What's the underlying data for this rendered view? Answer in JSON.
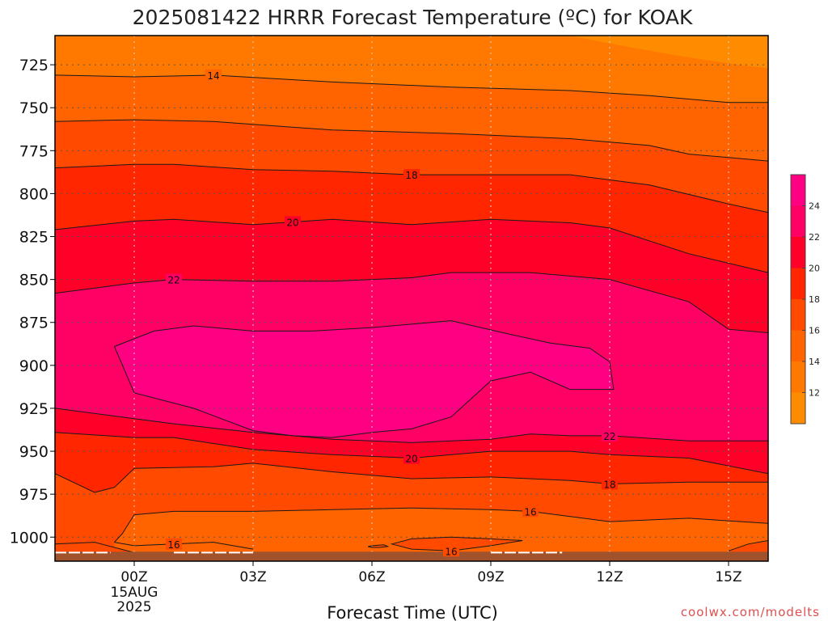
{
  "chart_data": {
    "type": "heatmap",
    "title": "2025081422 HRRR Forecast Temperature (ºC) for KOAK",
    "xlabel": "Forecast Time (UTC)",
    "ylabel": "",
    "credit": "coolwx.com/modelts",
    "x_ticks": [
      {
        "label": "00Z",
        "hour": 0,
        "sub": [
          "15AUG",
          "2025"
        ]
      },
      {
        "label": "03Z",
        "hour": 3
      },
      {
        "label": "06Z",
        "hour": 6
      },
      {
        "label": "09Z",
        "hour": 9
      },
      {
        "label": "12Z",
        "hour": 12
      },
      {
        "label": "15Z",
        "hour": 15
      }
    ],
    "xlim": [
      -2,
      16
    ],
    "y_ticks": [
      725,
      750,
      775,
      800,
      825,
      850,
      875,
      900,
      925,
      950,
      975,
      1000
    ],
    "ylim": [
      1014,
      708
    ],
    "y_inverted": true,
    "grid": true,
    "colorbar": {
      "ticks": [
        12,
        14,
        16,
        18,
        20,
        22,
        24
      ],
      "levels": [
        10,
        12,
        14,
        16,
        18,
        20,
        22,
        24,
        26
      ],
      "colors": [
        "#ff8c00",
        "#ff7800",
        "#ff6400",
        "#ff4a00",
        "#ff2600",
        "#ff0028",
        "#ff0064",
        "#ff0082"
      ]
    },
    "ground_color": "#a0522d",
    "series": [
      {
        "level": 14,
        "label": "14",
        "label_at": [
          2,
          14
        ],
        "x": [
          -2,
          0,
          2,
          5,
          8,
          11,
          13,
          15,
          16
        ],
        "y": [
          731,
          732,
          731,
          735,
          738,
          740,
          743,
          747,
          747
        ]
      },
      {
        "level": 16,
        "label": "",
        "label_at": null,
        "x": [
          -2,
          0,
          2,
          5,
          8,
          11,
          13,
          14,
          16
        ],
        "y": [
          758,
          757,
          758,
          763,
          765,
          768,
          772,
          777,
          781
        ]
      },
      {
        "level": 18,
        "label": "18",
        "label_at": [
          7,
          18
        ],
        "x": [
          -2,
          0,
          1,
          3,
          5,
          7,
          9,
          11,
          13,
          15,
          16
        ],
        "y": [
          785,
          783,
          783,
          786,
          787,
          789,
          789,
          789,
          795,
          806,
          811
        ]
      },
      {
        "level": 20,
        "label": "20",
        "label_at": [
          4,
          20
        ],
        "x": [
          -2,
          0,
          1,
          3,
          5,
          7,
          9,
          11,
          12,
          14,
          16
        ],
        "y": [
          821,
          816,
          815,
          818,
          815,
          818,
          815,
          817,
          820,
          835,
          846
        ]
      },
      {
        "level": 22,
        "label": "22",
        "label_at": [
          1,
          22
        ],
        "x": [
          -2,
          0,
          1,
          3,
          5,
          7,
          8,
          10,
          12,
          14,
          15,
          16
        ],
        "y": [
          858,
          852,
          850,
          851,
          851,
          849,
          846,
          846,
          850,
          863,
          879,
          881
        ]
      },
      {
        "level": 24,
        "label": "",
        "label_at": null,
        "x": [
          -0.5,
          0.5,
          1.5,
          3,
          4.5,
          6,
          7,
          8,
          9.5,
          10.5,
          11.5,
          12,
          12.1,
          11,
          10,
          9,
          8,
          7,
          6,
          5,
          4,
          3,
          1.5,
          0,
          -0.5
        ],
        "y": [
          889,
          880,
          877,
          880,
          880,
          878,
          876,
          874,
          882,
          887,
          890,
          898,
          914,
          914,
          904,
          909,
          930,
          937,
          939,
          942,
          941,
          938,
          925,
          916,
          889
        ]
      },
      {
        "level": 22,
        "label": "22",
        "label_at": [
          12,
          22
        ],
        "x": [
          -2,
          0,
          1,
          3,
          5,
          7,
          9,
          10,
          11,
          12,
          14,
          16
        ],
        "y": [
          925,
          931,
          934,
          939,
          943,
          945,
          943,
          940,
          941,
          941,
          944,
          944
        ]
      },
      {
        "level": 20,
        "label": "20",
        "label_at": [
          7,
          20
        ],
        "x": [
          -2,
          0,
          1,
          3,
          5,
          7,
          9,
          11,
          12,
          14,
          16
        ],
        "y": [
          939,
          942,
          942,
          949,
          952,
          954,
          950,
          950,
          952,
          954,
          963
        ]
      },
      {
        "level": 18,
        "label": "18",
        "label_at": [
          12,
          18
        ],
        "x": [
          -2,
          -1,
          -0.5,
          0,
          2,
          3,
          5,
          7,
          9,
          11,
          12,
          14,
          16
        ],
        "y": [
          963,
          974,
          971,
          960,
          959,
          957,
          962,
          966,
          965,
          967,
          969,
          968,
          968
        ]
      },
      {
        "level": 16,
        "label": "16",
        "label_at": [
          10,
          16
        ],
        "x": [
          -0.5,
          -0.3,
          0,
          1,
          3,
          5,
          7,
          9,
          10,
          11,
          12,
          13,
          14,
          16
        ],
        "y": [
          1003,
          998,
          987,
          985,
          985,
          984,
          983,
          984,
          985,
          988,
          991,
          990,
          989,
          992
        ]
      },
      {
        "level": 16,
        "label": "16",
        "label_at": [
          1,
          16
        ],
        "x": [
          -0.5,
          0,
          1,
          2,
          3
        ],
        "y": [
          1003,
          1005,
          1004,
          1003,
          1007
        ]
      },
      {
        "level": 16,
        "label": "",
        "label_at": null,
        "x": [
          -2,
          -1,
          0
        ],
        "y": [
          1004,
          1003,
          1009
        ]
      },
      {
        "level": 16,
        "label": "16",
        "label_at": [
          8,
          16
        ],
        "x": [
          6.5,
          7,
          8,
          9,
          9.8,
          9,
          8,
          7,
          6.5
        ],
        "y": [
          1004,
          1001,
          1000,
          1001,
          1002,
          1005,
          1008,
          1007,
          1004
        ]
      },
      {
        "level": 16,
        "label": "",
        "label_at": null,
        "x": [
          6,
          6.3,
          6.4,
          6.2,
          6,
          5.9,
          6
        ],
        "y": [
          1005,
          1004.5,
          1005.5,
          1006,
          1006,
          1005.5,
          1005
        ]
      },
      {
        "level": 16,
        "label": "",
        "label_at": null,
        "x": [
          15,
          15.5,
          16
        ],
        "y": [
          1008,
          1004,
          1002
        ]
      }
    ],
    "surface_segments": [
      {
        "x": [
          -2,
          -0.6
        ]
      },
      {
        "x": [
          1,
          3
        ]
      },
      {
        "x": [
          9,
          10.8
        ]
      }
    ]
  }
}
